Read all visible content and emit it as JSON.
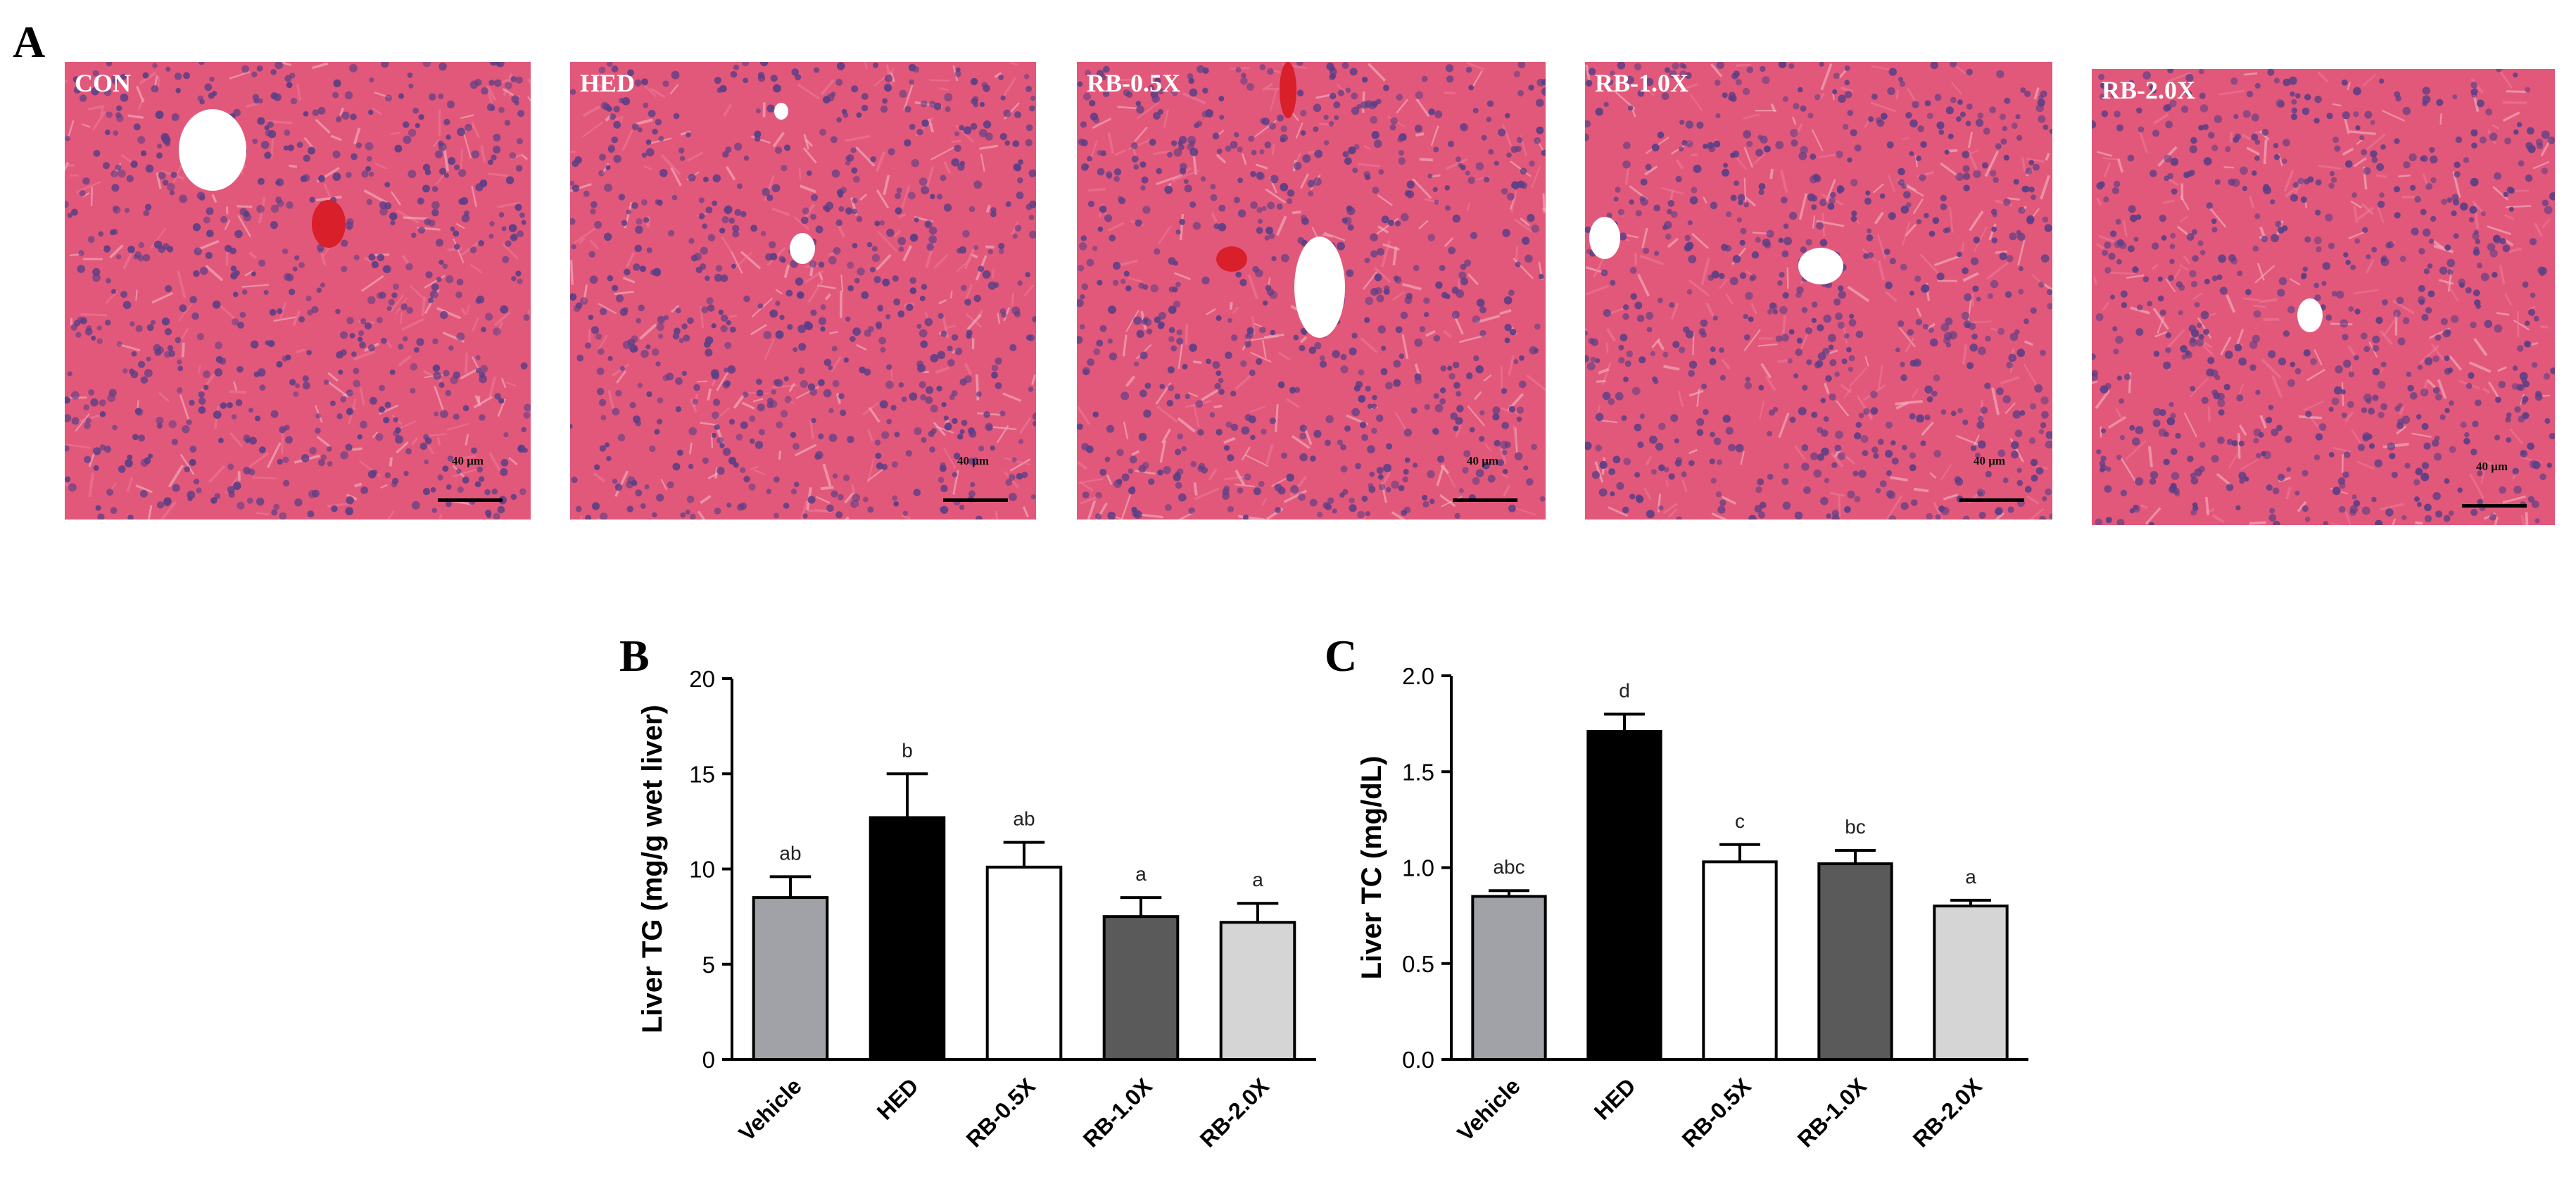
{
  "panels": {
    "a": "A",
    "b": "B",
    "c": "C"
  },
  "colors": {
    "tissue_base": "#e2587a",
    "tissue_light": "#ec7a98",
    "nucleus": "#5b3f86",
    "vessel": "#ffffff",
    "blood": "#d81f2a"
  },
  "histology": [
    {
      "label": "CON",
      "scale": "40 μm"
    },
    {
      "label": "HED",
      "scale": "40 μm"
    },
    {
      "label": "RB-0.5X",
      "scale": "40 μm"
    },
    {
      "label": "RB-1.0X",
      "scale": "40 μm"
    },
    {
      "label": "RB-2.0X",
      "scale": "40 μm"
    }
  ],
  "chart_data": [
    {
      "type": "bar",
      "categories": [
        "Vehicle",
        "HED",
        "RB-0.5X",
        "RB-1.0X",
        "RB-2.0X"
      ],
      "values": [
        8.5,
        12.7,
        10.1,
        7.5,
        7.2
      ],
      "errors": [
        1.1,
        2.3,
        1.3,
        1.0,
        1.0
      ],
      "annotations": [
        "ab",
        "b",
        "ab",
        "a",
        "a"
      ],
      "colors": [
        "#a1a1a8",
        "#000000",
        "#ffffff",
        "#5a5a5a",
        "#d5d5d5"
      ],
      "title": "",
      "xlabel": "",
      "ylabel": "Liver TG (mg/g wet liver)",
      "ylim": [
        0,
        20
      ],
      "yticks": [
        "0",
        "5",
        "10",
        "15",
        "20"
      ],
      "ytick_values": [
        0,
        5,
        10,
        15,
        20
      ]
    },
    {
      "type": "bar",
      "categories": [
        "Vehicle",
        "HED",
        "RB-0.5X",
        "RB-1.0X",
        "RB-2.0X"
      ],
      "values": [
        0.85,
        1.71,
        1.03,
        1.02,
        0.8
      ],
      "errors": [
        0.03,
        0.09,
        0.09,
        0.07,
        0.03
      ],
      "annotations": [
        "abc",
        "d",
        "c",
        "bc",
        "a"
      ],
      "colors": [
        "#a1a1a8",
        "#000000",
        "#ffffff",
        "#5a5a5a",
        "#d5d5d5"
      ],
      "title": "",
      "xlabel": "",
      "ylabel": "Liver TC (mg/dL)",
      "ylim": [
        0,
        2.0
      ],
      "yticks": [
        "0.0",
        "0.5",
        "1.0",
        "1.5",
        "2.0"
      ],
      "ytick_values": [
        0,
        0.5,
        1.0,
        1.5,
        2.0
      ]
    }
  ]
}
